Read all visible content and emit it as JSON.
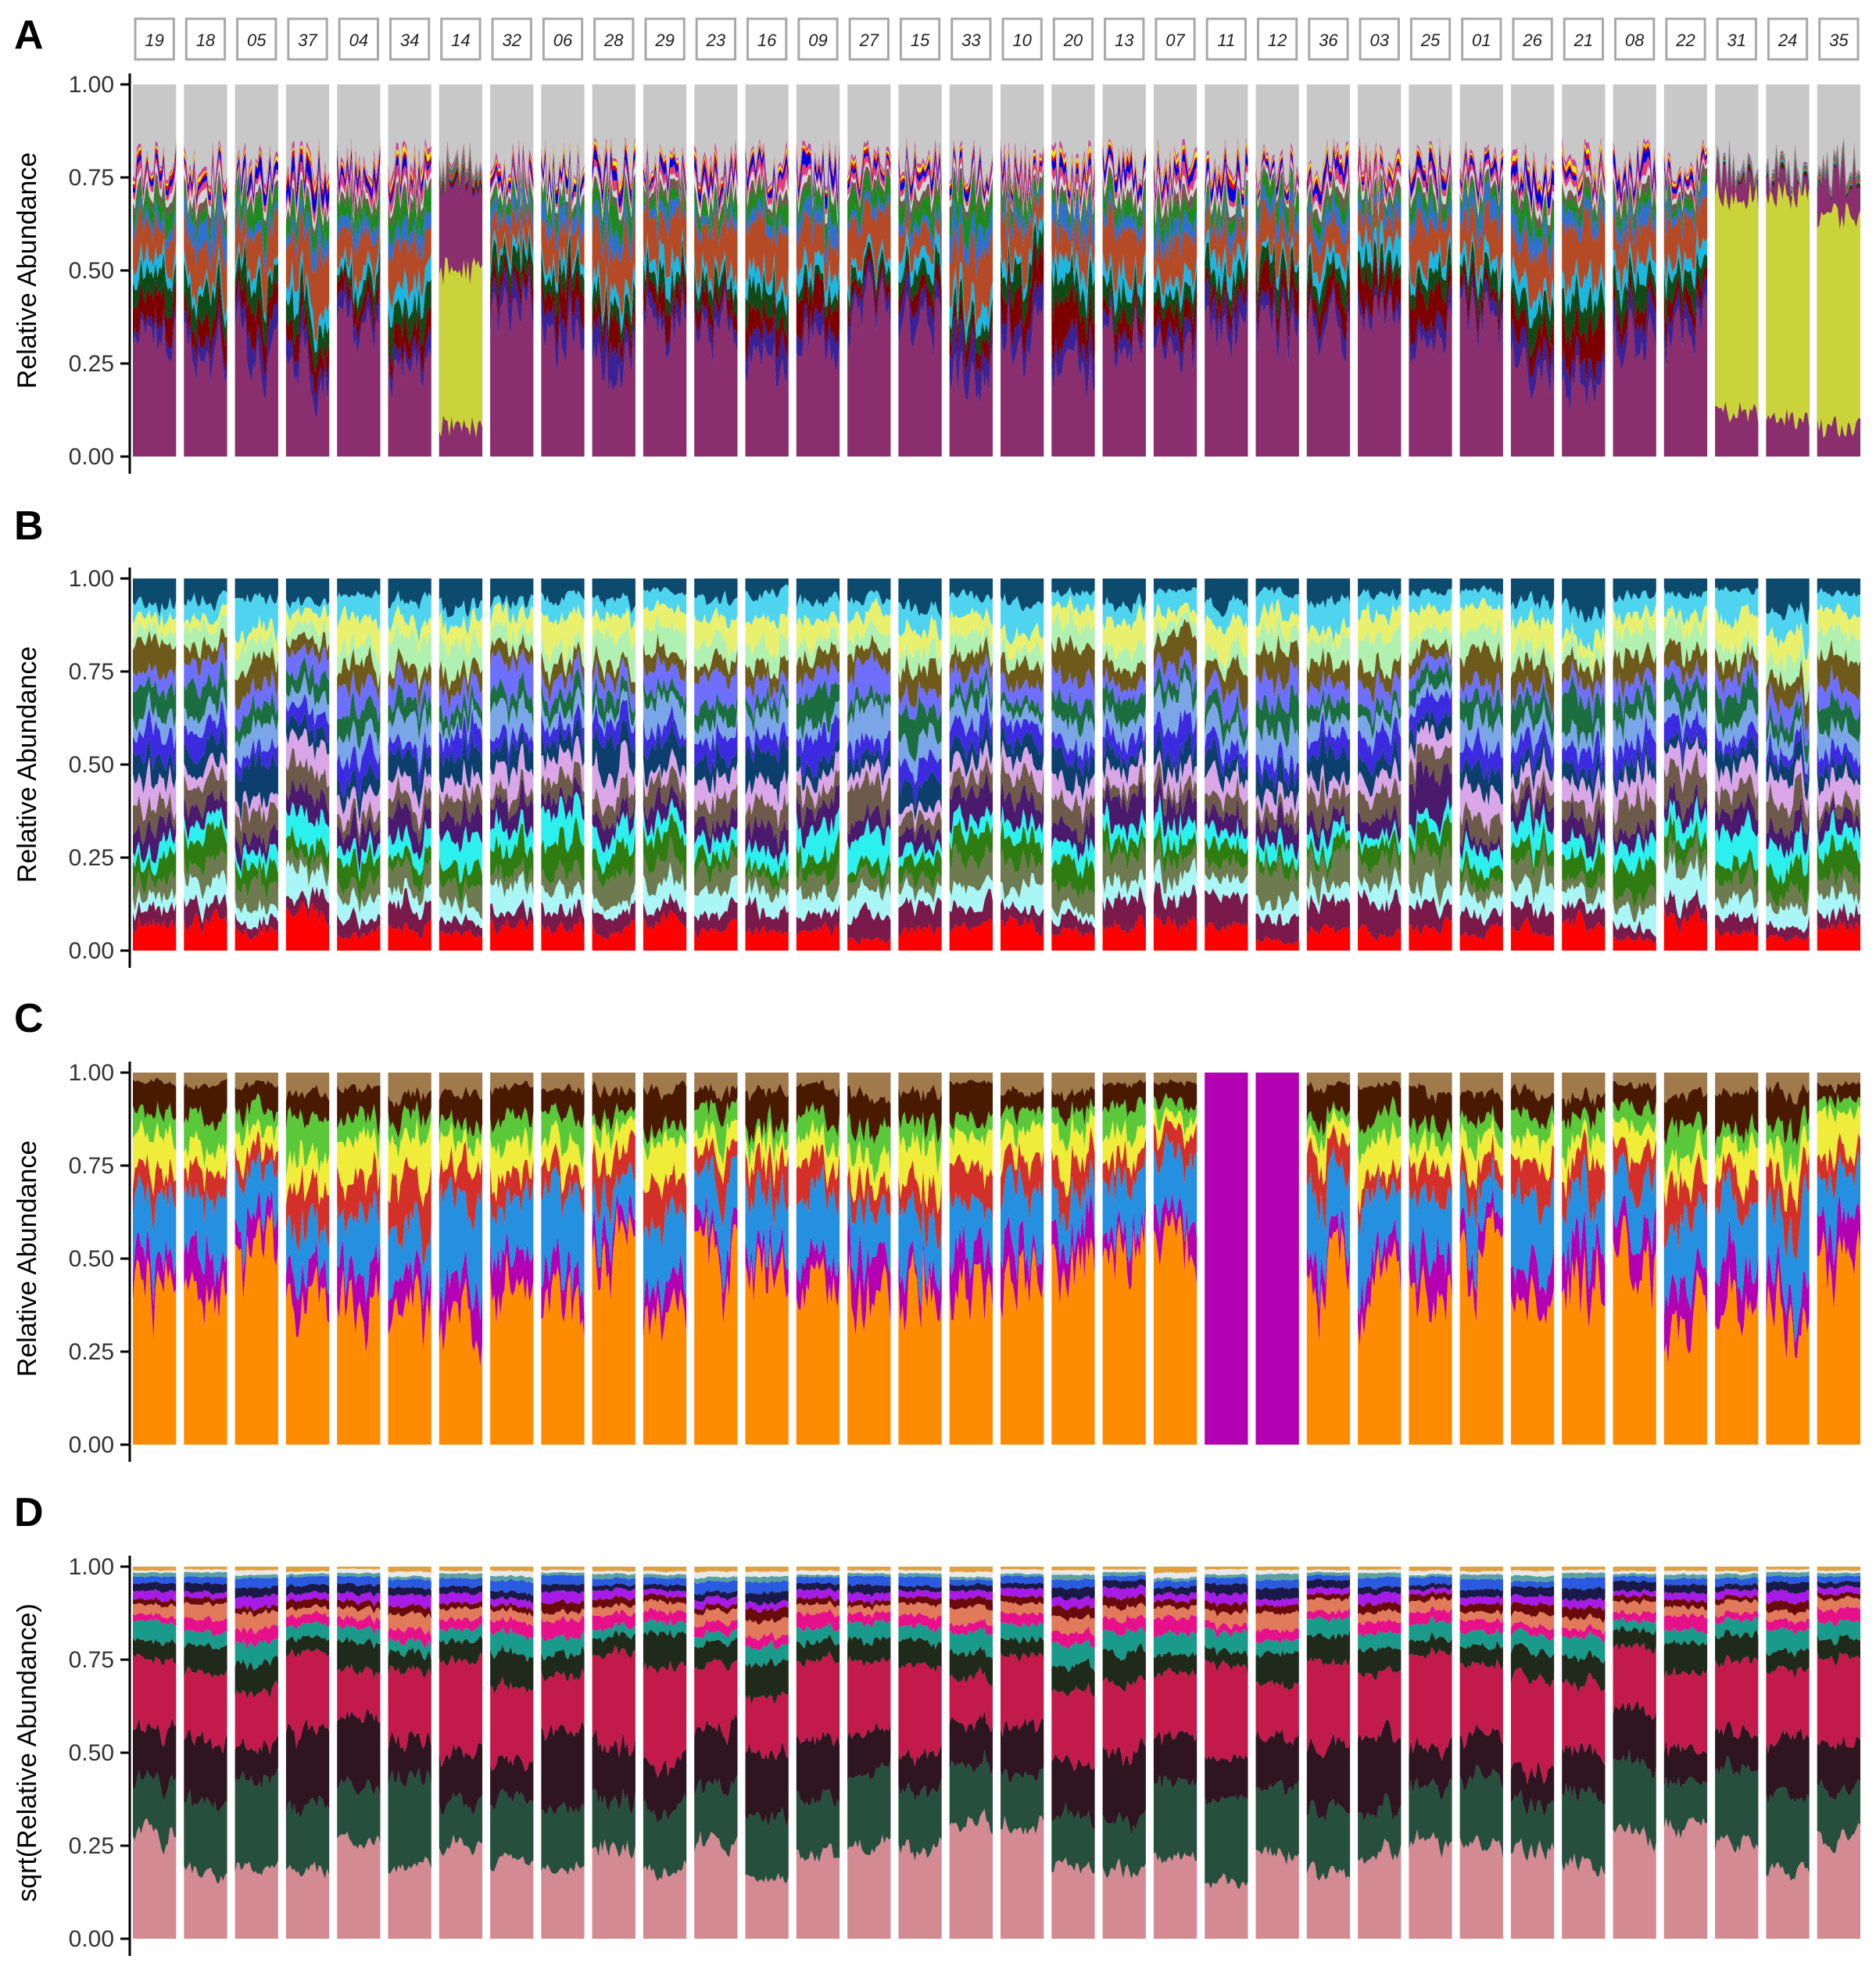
{
  "facet_labels": [
    "19",
    "18",
    "05",
    "37",
    "04",
    "34",
    "14",
    "32",
    "06",
    "28",
    "29",
    "23",
    "16",
    "09",
    "27",
    "15",
    "33",
    "10",
    "20",
    "13",
    "07",
    "11",
    "12",
    "36",
    "03",
    "25",
    "01",
    "26",
    "21",
    "08",
    "22",
    "31",
    "24",
    "35"
  ],
  "chart_data": [
    {
      "panel": "A",
      "type": "area",
      "ylabel": "Relative Abundance",
      "ylim": [
        0,
        1
      ],
      "yticks": [
        "0.00",
        "0.25",
        "0.50",
        "0.75",
        "1.00"
      ],
      "stack_colors": [
        "#8b2e6e",
        "#3a2196",
        "#7d0000",
        "#0f4a17",
        "#1db6e3",
        "#b44a26",
        "#2e6fd1",
        "#1d8a1e",
        "#6d5a4a",
        "#d4d4d4",
        "#e63b7a",
        "#0000e6",
        "#e60000",
        "#f2e600",
        "#cc4499"
      ],
      "top_color": "#c8c8c8",
      "special_facets": {
        "31": {
          "dominant_color": "#c8d43a",
          "dominant_range": [
            0.12,
            0.7
          ]
        },
        "24": {
          "dominant_color": "#c8d43a",
          "dominant_range": [
            0.1,
            0.7
          ]
        },
        "35": {
          "dominant_color": "#c8d43a",
          "dominant_range": [
            0.08,
            0.65
          ]
        },
        "14": {
          "dominant_color": "#c8d43a",
          "dominant_range": [
            0.08,
            0.5
          ]
        }
      }
    },
    {
      "panel": "B",
      "type": "area",
      "ylabel": "Relative Abundance",
      "ylim": [
        0,
        1
      ],
      "yticks": [
        "0.00",
        "0.25",
        "0.50",
        "0.75",
        "1.00"
      ],
      "stack_colors": [
        "#ff0000",
        "#7a1a4a",
        "#aaf6f6",
        "#6e7a50",
        "#2f7d12",
        "#2cf0ee",
        "#4a1a6e",
        "#6d5a4a",
        "#d9a6e8",
        "#0c3f6e",
        "#3c2ae0",
        "#7aa6e8",
        "#1a6e40",
        "#6e6eff",
        "#6e5a1a",
        "#b0f0b0",
        "#e8f06e",
        "#4fd4f0",
        "#0c4a6e"
      ]
    },
    {
      "panel": "C",
      "type": "area",
      "ylabel": "Relative Abundance",
      "ylim": [
        0,
        1
      ],
      "yticks": [
        "0.00",
        "0.25",
        "0.50",
        "0.75",
        "1.00"
      ],
      "stack_colors": [
        "#ff8c00",
        "#b200b2",
        "#2590e0",
        "#d4302a",
        "#f0ec3a",
        "#5bc83a",
        "#4a1a00",
        "#a07a4a"
      ],
      "special_facets": {
        "11": {
          "solid_color": "#b200b2"
        },
        "12": {
          "solid_color": "#b200b2"
        }
      }
    },
    {
      "panel": "D",
      "type": "area",
      "ylabel": "sqrt(Relative Abundance)",
      "ylim": [
        0,
        1
      ],
      "yticks": [
        "0.00",
        "0.25",
        "0.50",
        "0.75",
        "1.00"
      ],
      "stack_colors": [
        "#d48a92",
        "#264f3e",
        "#2e1520",
        "#c21a4a",
        "#202a1a",
        "#1a9a8a",
        "#e6108a",
        "#e07a5a",
        "#6a0a0a",
        "#a81ae6",
        "#1a1a4a",
        "#2a5ae0",
        "#5aa0a0",
        "#e8e8e8",
        "#e0a040"
      ]
    }
  ]
}
